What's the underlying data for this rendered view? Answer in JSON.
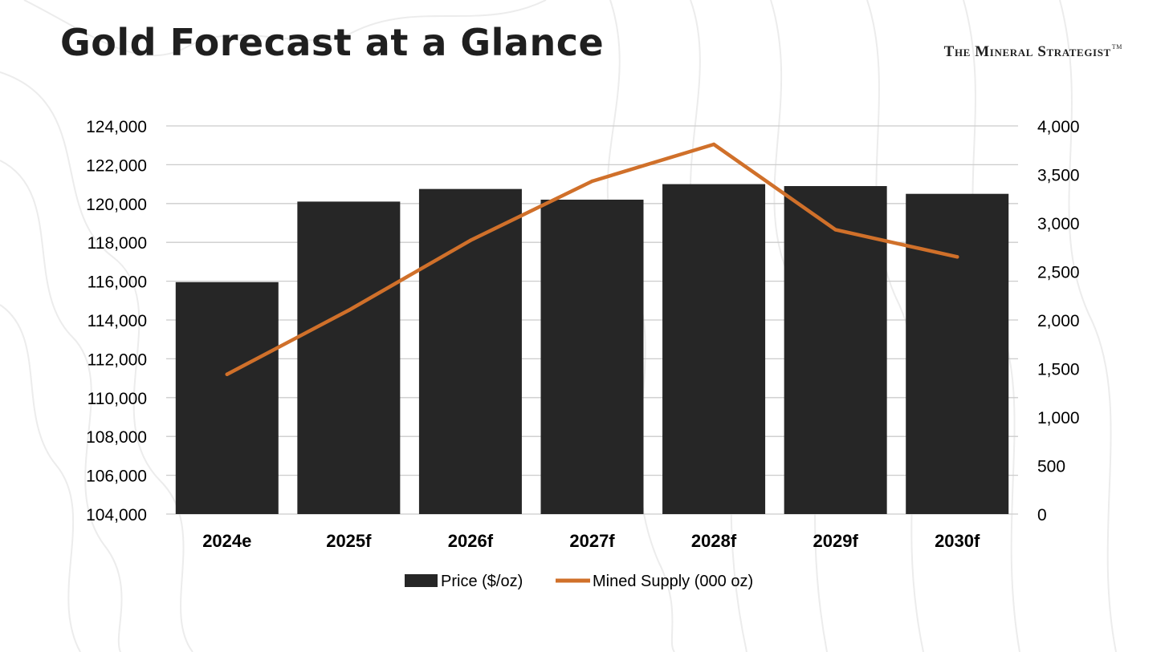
{
  "header": {
    "title": "Gold Forecast at a Glance",
    "brand": "The Mineral Strategist",
    "brand_mark": "TM"
  },
  "colors": {
    "bar": "#262626",
    "line": "#d0702a",
    "grid": "#cccccc",
    "text": "#000000",
    "contour": "#ececec"
  },
  "chart_data": {
    "type": "bar",
    "categories": [
      "2024e",
      "2025f",
      "2026f",
      "2027f",
      "2028f",
      "2029f",
      "2030f"
    ],
    "series": [
      {
        "name": "Price ($/oz)",
        "type": "bar",
        "axis": "left",
        "values": [
          115950,
          120100,
          120750,
          120200,
          121000,
          120900,
          120500
        ]
      },
      {
        "name": "Mined Supply (000 oz)",
        "type": "line",
        "axis": "right",
        "values": [
          1440,
          2100,
          2820,
          3430,
          3810,
          2930,
          2650
        ]
      }
    ],
    "y_left": {
      "min": 104000,
      "max": 124000,
      "step": 2000,
      "ticks": [
        "104,000",
        "106,000",
        "108,000",
        "110,000",
        "112,000",
        "114,000",
        "116,000",
        "118,000",
        "120,000",
        "122,000",
        "124,000"
      ]
    },
    "y_right": {
      "min": 0,
      "max": 4000,
      "step": 500,
      "ticks": [
        "0",
        "500",
        "1,000",
        "1,500",
        "2,000",
        "2,500",
        "3,000",
        "3,500",
        "4,000"
      ]
    },
    "grid": true,
    "legend": "bottom-center"
  }
}
